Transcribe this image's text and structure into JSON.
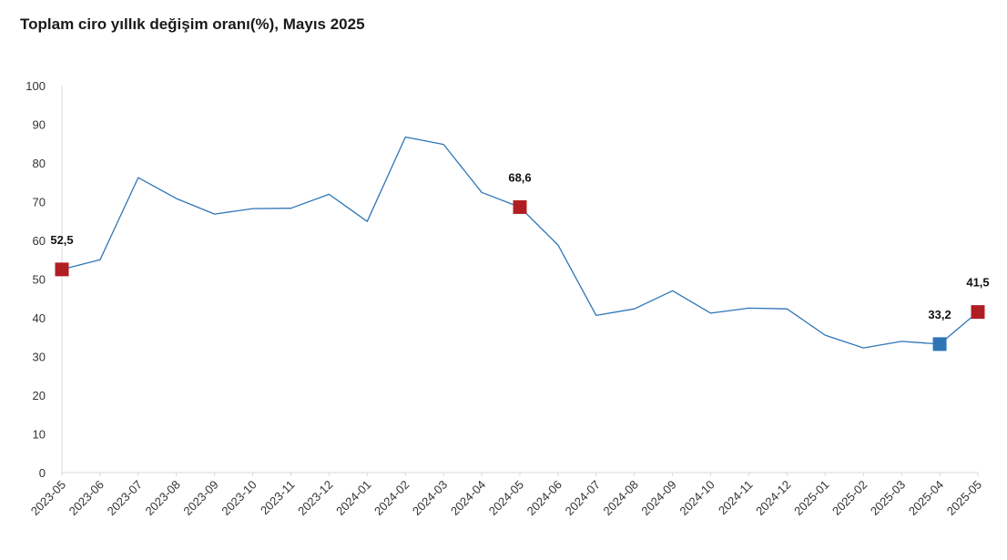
{
  "chart_data": {
    "type": "line",
    "title": "Toplam ciro yıllık değişim oranı(%), Mayıs 2025",
    "xlabel": "",
    "ylabel": "",
    "ylim": [
      0,
      100
    ],
    "yticks": [
      0,
      10,
      20,
      30,
      40,
      50,
      60,
      70,
      80,
      90,
      100
    ],
    "grid": false,
    "legend": "none",
    "x": [
      "2023-05",
      "2023-06",
      "2023-07",
      "2023-08",
      "2023-09",
      "2023-10",
      "2023-11",
      "2023-12",
      "2024-01",
      "2024-02",
      "2024-03",
      "2024-04",
      "2024-05",
      "2024-06",
      "2024-07",
      "2024-08",
      "2024-09",
      "2024-10",
      "2024-11",
      "2024-12",
      "2025-01",
      "2025-02",
      "2025-03",
      "2025-04",
      "2025-05"
    ],
    "series": [
      {
        "color": "#2e75b6",
        "values": [
          52.5,
          55.0,
          76.2,
          70.8,
          66.8,
          68.2,
          68.3,
          71.9,
          64.9,
          86.7,
          84.8,
          72.4,
          68.6,
          58.8,
          40.6,
          42.3,
          47.0,
          41.2,
          42.5,
          42.3,
          35.5,
          32.2,
          33.9,
          33.2,
          41.5
        ]
      }
    ],
    "highlights": [
      {
        "label": "52,5",
        "value": 52.5,
        "category": "2023-05",
        "color": "#b01e23",
        "label_position": "above"
      },
      {
        "label": "68,6",
        "value": 68.6,
        "category": "2024-05",
        "color": "#b01e23",
        "label_position": "above"
      },
      {
        "label": "33,2",
        "value": 33.2,
        "category": "2025-04",
        "color": "#2e75b6",
        "label_position": "above"
      },
      {
        "label": "41,5",
        "value": 41.5,
        "category": "2025-05",
        "color": "#b01e23",
        "label_position": "above"
      }
    ]
  }
}
